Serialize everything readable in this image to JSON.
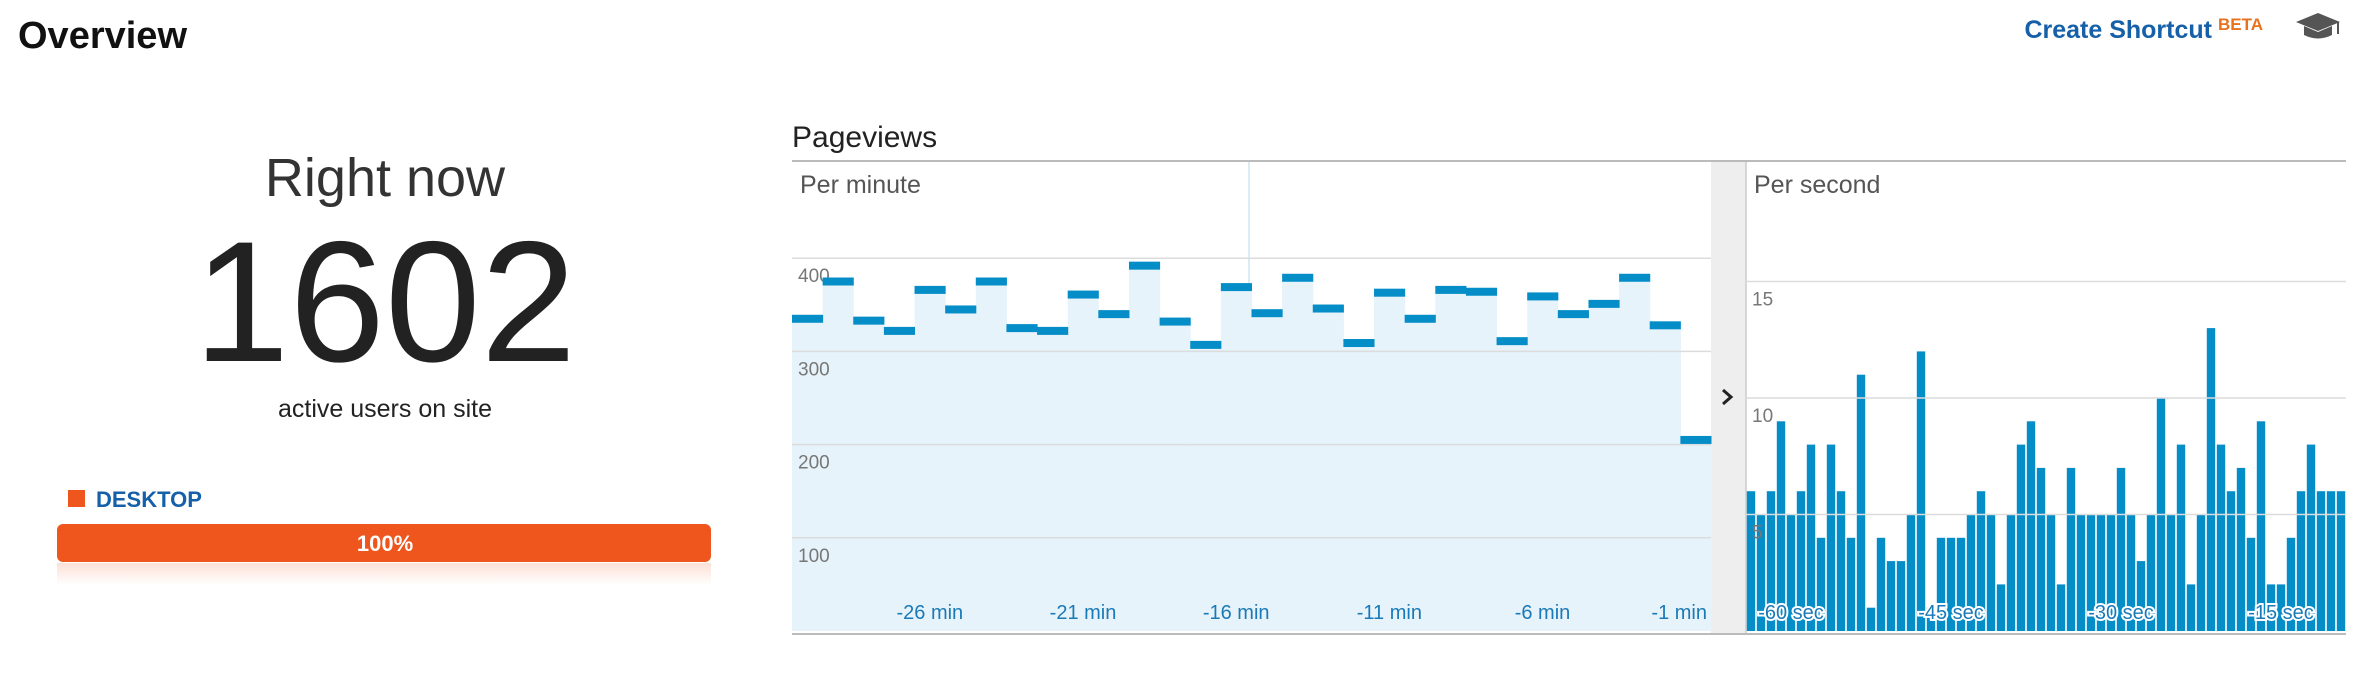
{
  "header": {
    "title": "Overview",
    "shortcut": "Create Shortcut",
    "badge": "BETA"
  },
  "right_now": {
    "title": "Right now",
    "count": 1602,
    "caption": "active users on site",
    "device": {
      "name": "DESKTOP",
      "share": "100%"
    }
  },
  "section_title": "Pageviews",
  "chart_data": [
    {
      "type": "step",
      "subtitle": "Per minute",
      "categories": [
        null,
        null,
        null,
        null,
        "-26 min",
        null,
        null,
        null,
        null,
        "-21 min",
        null,
        null,
        null,
        null,
        "-16 min",
        null,
        null,
        null,
        null,
        "-11 min",
        null,
        null,
        null,
        null,
        "-6 min",
        null,
        null,
        null,
        null,
        "-1 min"
      ],
      "values": [
        335,
        375,
        333,
        322,
        366,
        345,
        375,
        325,
        322,
        361,
        340,
        392,
        332,
        307,
        369,
        341,
        379,
        346,
        309,
        363,
        335,
        366,
        364,
        311,
        359,
        340,
        351,
        379,
        328,
        205
      ],
      "color": "#058dc7",
      "area_color": "#e6f3fa",
      "ylim": [
        0,
        500
      ],
      "yticks": [
        100,
        200,
        300,
        400
      ],
      "grid": true
    },
    {
      "type": "bar",
      "subtitle": "Per second",
      "categories": [
        null,
        null,
        null,
        null,
        "-60 sec",
        null,
        null,
        null,
        null,
        null,
        null,
        null,
        null,
        null,
        null,
        null,
        null,
        null,
        null,
        null,
        "-45 sec",
        null,
        null,
        null,
        null,
        null,
        null,
        null,
        null,
        null,
        null,
        null,
        null,
        null,
        null,
        null,
        null,
        "-30 sec",
        null,
        null,
        null,
        null,
        null,
        null,
        null,
        null,
        null,
        null,
        null,
        null,
        null,
        null,
        null,
        "-15 sec",
        null,
        null,
        null,
        null,
        null,
        null
      ],
      "values": [
        6,
        5,
        6,
        9,
        5,
        6,
        8,
        4,
        8,
        6,
        4,
        11,
        1,
        4,
        3,
        3,
        5,
        12,
        1,
        4,
        4,
        4,
        5,
        6,
        5,
        2,
        5,
        8,
        9,
        7,
        5,
        2,
        7,
        5,
        5,
        5,
        5,
        7,
        5,
        3,
        5,
        10,
        5,
        8,
        2,
        5,
        13,
        8,
        6,
        7,
        4,
        9,
        2,
        2,
        4,
        6,
        8,
        6,
        6,
        6
      ],
      "color": "#058dc7",
      "ylim": [
        0,
        20
      ],
      "yticks": [
        5,
        10,
        15
      ],
      "grid": true
    }
  ]
}
